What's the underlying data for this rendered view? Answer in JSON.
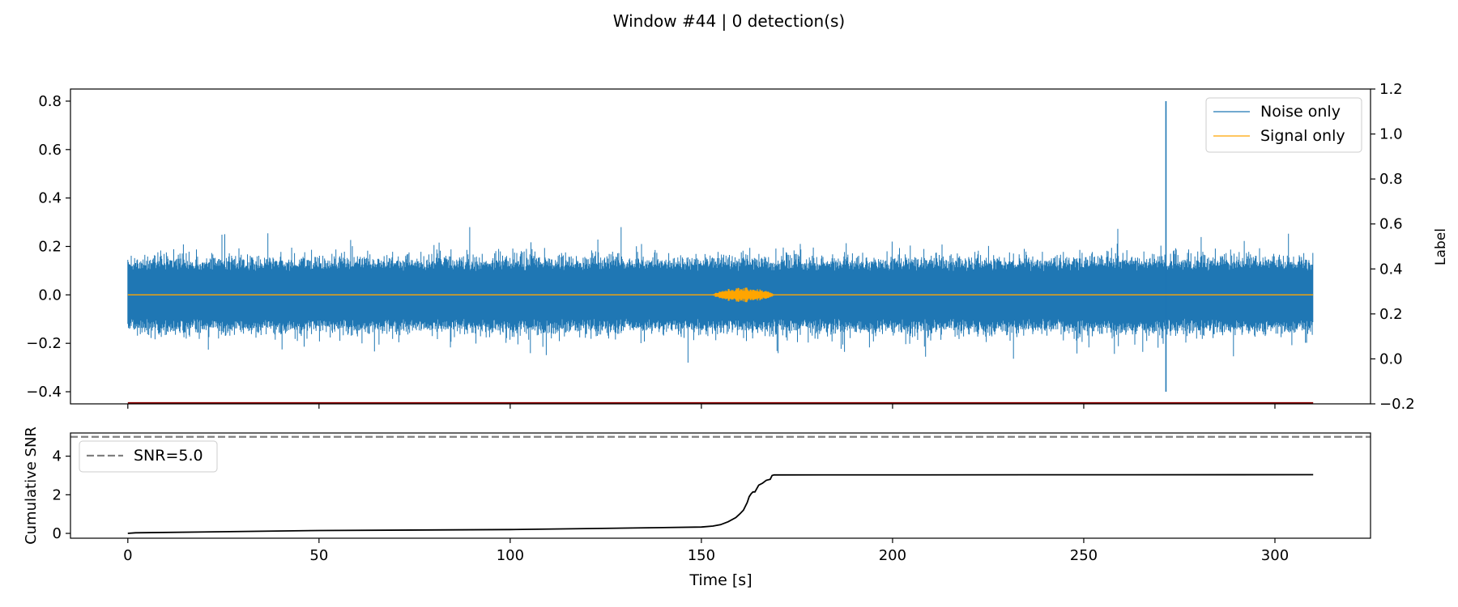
{
  "title": "Window #44 | 0 detection(s)",
  "colors": {
    "noise": "#1f77b4",
    "signal": "#ffa500",
    "label": "#8b0000",
    "snr": "#000000",
    "threshold": "#808080"
  },
  "chart_data": [
    {
      "type": "line",
      "panel": "top",
      "x_range": [
        0,
        310
      ],
      "ylim": [
        -0.45,
        0.85
      ],
      "yticks": [
        -0.4,
        -0.2,
        0.0,
        0.2,
        0.4,
        0.6,
        0.8
      ],
      "ytick_labels": [
        "−0.4",
        "−0.2",
        "0.0",
        "0.2",
        "0.4",
        "0.6",
        "0.8"
      ],
      "ylabel": "",
      "y2label": "Label",
      "y2lim": [
        -0.2,
        1.2
      ],
      "y2ticks": [
        -0.2,
        0.0,
        0.2,
        0.4,
        0.6,
        0.8,
        1.0,
        1.2
      ],
      "y2tick_labels": [
        "−0.2",
        "0.0",
        "0.2",
        "0.4",
        "0.6",
        "0.8",
        "1.0",
        "1.2"
      ],
      "legend_position": "upper right",
      "series": [
        {
          "name": "Noise only",
          "color": "#1f77b4",
          "amplitude_typical": 0.13,
          "amplitude_max": 0.28,
          "spike": {
            "x": 271.5,
            "ymax": 0.8,
            "ymin": -0.4
          }
        },
        {
          "name": "Signal only",
          "color": "#ffa500",
          "baseline": 0.0,
          "burst_x": [
            153,
            169
          ],
          "burst_amplitude": 0.03
        },
        {
          "color": "#8b0000",
          "axis": "right",
          "x": [
            0,
            310
          ],
          "y": [
            -0.2,
            -0.2
          ]
        }
      ]
    },
    {
      "type": "line",
      "panel": "bottom",
      "x_range": [
        0,
        310
      ],
      "xlim": [
        -15,
        325
      ],
      "xticks": [
        0,
        50,
        100,
        150,
        200,
        250,
        300
      ],
      "xtick_labels": [
        "0",
        "50",
        "100",
        "150",
        "200",
        "250",
        "300"
      ],
      "xlabel": "Time [s]",
      "ylabel": "Cumulative SNR",
      "ylim": [
        -0.25,
        5.2
      ],
      "yticks": [
        0,
        2,
        4
      ],
      "ytick_labels": [
        "0",
        "2",
        "4"
      ],
      "legend_position": "upper left",
      "threshold": {
        "name": "SNR=5.0",
        "value": 5.0,
        "style": "dashed",
        "color": "#808080"
      },
      "series": [
        {
          "color": "#000000",
          "x": [
            0,
            2,
            50,
            100,
            140,
            150,
            153,
            155,
            157,
            159,
            160,
            161,
            162,
            162.5,
            163,
            163.5,
            164,
            165,
            166,
            167,
            168,
            168.5,
            169,
            310
          ],
          "y": [
            0.0,
            0.03,
            0.15,
            0.2,
            0.3,
            0.33,
            0.38,
            0.45,
            0.6,
            0.82,
            1.0,
            1.2,
            1.6,
            1.9,
            2.05,
            2.15,
            2.15,
            2.5,
            2.6,
            2.75,
            2.8,
            3.0,
            3.03,
            3.04
          ]
        }
      ]
    }
  ]
}
